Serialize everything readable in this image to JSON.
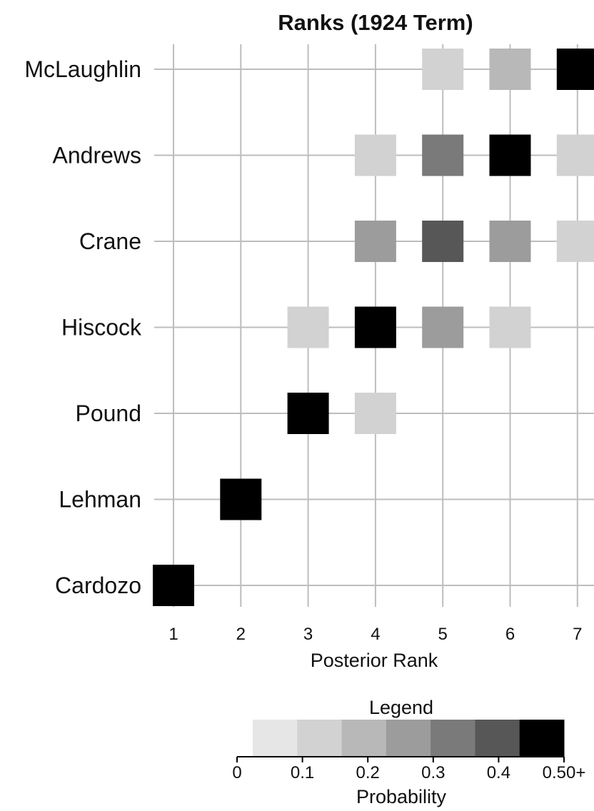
{
  "chart_data": {
    "type": "heatmap",
    "title": "Ranks (1924 Term)",
    "xlabel": "Posterior Rank",
    "ylabel": "",
    "x_categories": [
      "1",
      "2",
      "3",
      "4",
      "5",
      "6",
      "7"
    ],
    "y_categories": [
      "McLaughlin",
      "Andrews",
      "Crane",
      "Hiscock",
      "Pound",
      "Lehman",
      "Cardozo"
    ],
    "cells": [
      {
        "judge": "McLaughlin",
        "rank": 5,
        "probability": 0.08
      },
      {
        "judge": "McLaughlin",
        "rank": 6,
        "probability": 0.16
      },
      {
        "judge": "McLaughlin",
        "rank": 7,
        "probability": 0.5
      },
      {
        "judge": "Andrews",
        "rank": 4,
        "probability": 0.07
      },
      {
        "judge": "Andrews",
        "rank": 5,
        "probability": 0.3
      },
      {
        "judge": "Andrews",
        "rank": 6,
        "probability": 0.5
      },
      {
        "judge": "Andrews",
        "rank": 7,
        "probability": 0.1
      },
      {
        "judge": "Crane",
        "rank": 4,
        "probability": 0.24
      },
      {
        "judge": "Crane",
        "rank": 5,
        "probability": 0.4
      },
      {
        "judge": "Crane",
        "rank": 6,
        "probability": 0.22
      },
      {
        "judge": "Crane",
        "rank": 7,
        "probability": 0.12
      },
      {
        "judge": "Hiscock",
        "rank": 3,
        "probability": 0.08
      },
      {
        "judge": "Hiscock",
        "rank": 4,
        "probability": 0.5
      },
      {
        "judge": "Hiscock",
        "rank": 5,
        "probability": 0.27
      },
      {
        "judge": "Hiscock",
        "rank": 6,
        "probability": 0.09
      },
      {
        "judge": "Pound",
        "rank": 3,
        "probability": 0.5
      },
      {
        "judge": "Pound",
        "rank": 4,
        "probability": 0.1
      },
      {
        "judge": "Lehman",
        "rank": 2,
        "probability": 0.5
      },
      {
        "judge": "Cardozo",
        "rank": 1,
        "probability": 0.5
      }
    ],
    "grid": true,
    "legend": {
      "title": "Legend",
      "label": "Probability",
      "ticks": [
        "0",
        "0.1",
        "0.2",
        "0.3",
        "0.4",
        "0.50+"
      ],
      "range": [
        0,
        0.5
      ],
      "colors": [
        "#e6e6e6",
        "#d2d2d2",
        "#b8b8b8",
        "#9c9c9c",
        "#7a7a7a",
        "#575757",
        "#000000"
      ],
      "placement": "bottom"
    }
  }
}
